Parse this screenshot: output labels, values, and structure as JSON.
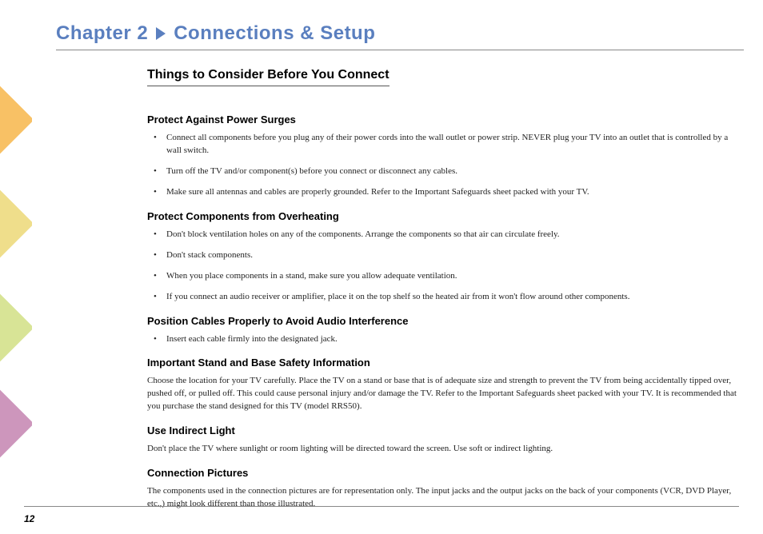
{
  "chapter": {
    "prefix": "Chapter 2",
    "suffix": "Connections & Setup"
  },
  "section_heading": "Things to Consider Before You Connect",
  "sections": {
    "power_surges": {
      "heading": "Protect Against Power Surges",
      "items": [
        "Connect all components before you plug any of their power cords into the wall outlet or power strip. NEVER plug your TV into an outlet that is controlled by a wall switch.",
        "Turn off the TV and/or component(s) before you connect or disconnect any cables.",
        "Make sure all antennas and cables are properly grounded. Refer to the Important Safeguards sheet packed with your TV."
      ]
    },
    "overheating": {
      "heading": "Protect Components from Overheating",
      "items": [
        "Don't block ventilation holes on any of the components. Arrange the components so that air can circulate freely.",
        "Don't stack components.",
        "When you place components in a stand, make sure you allow adequate ventilation.",
        "If you connect an audio receiver or amplifier, place it on the top shelf so the heated air from it won't flow around other components."
      ]
    },
    "cables": {
      "heading": "Position Cables Properly to Avoid Audio Interference",
      "items": [
        "Insert each cable firmly into the designated jack."
      ]
    },
    "stand": {
      "heading": "Important Stand and Base Safety Information",
      "para": "Choose the location for your TV carefully. Place the TV on a stand or base that is of adequate size and strength to prevent the TV from being accidentally tipped over, pushed off, or pulled off. This could cause personal injury and/or damage the TV. Refer to the Important Safeguards sheet packed with your TV. It is recommended that you purchase the stand designed for this TV (model RRS50)."
    },
    "light": {
      "heading": "Use Indirect Light",
      "para": "Don't place the TV where sunlight or room lighting will be directed toward the screen. Use soft or indirect lighting."
    },
    "pictures": {
      "heading": "Connection Pictures",
      "para": "The components used in the connection pictures are for representation only. The input jacks and the output jacks on the back of your components (VCR, DVD Player, etc.,) might look different than those illustrated."
    }
  },
  "page_number": "12",
  "colors": {
    "title": "#5a7fbf",
    "rule": "#888888",
    "text": "#222222"
  }
}
